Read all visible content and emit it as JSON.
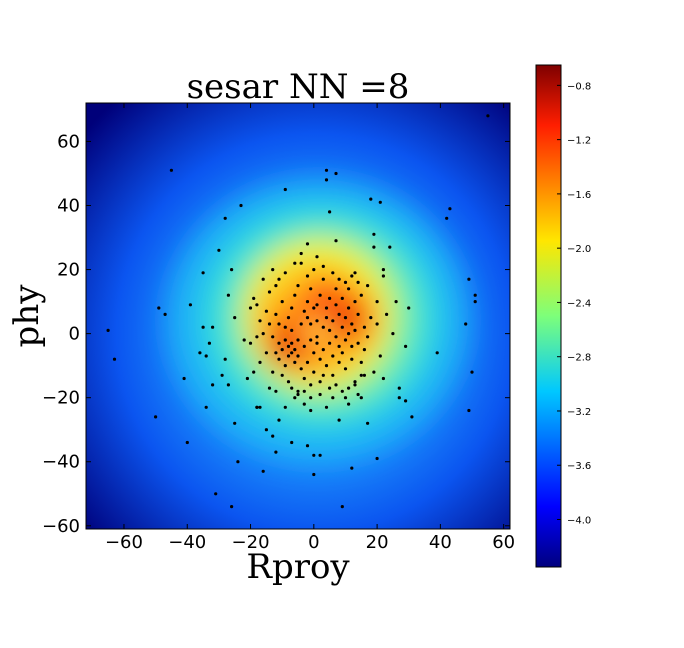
{
  "chart_data": {
    "type": "scatter",
    "title": "sesar NN =8",
    "xlabel": "Rproy",
    "ylabel": "phy",
    "xlim": [
      -72,
      62
    ],
    "ylim": [
      -61,
      72
    ],
    "xticks": [
      -60,
      -40,
      -20,
      0,
      20,
      40,
      60
    ],
    "yticks": [
      -60,
      -40,
      -20,
      0,
      20,
      40,
      60
    ],
    "grid": false,
    "background": "density heatmap (jet colormap)",
    "colorbar": {
      "colormap": "jet",
      "range": [
        -4.35,
        -0.65
      ],
      "ticks": [
        -4.0,
        -3.6,
        -3.2,
        -2.8,
        -2.4,
        -2.0,
        -1.6,
        -1.2,
        -0.8
      ],
      "tick_labels": [
        "−4.0",
        "−3.6",
        "−3.2",
        "−2.8",
        "−2.4",
        "−2.0",
        "−1.6",
        "−1.2",
        "−0.8"
      ]
    },
    "points": [
      [
        -65,
        1
      ],
      [
        -63,
        -8
      ],
      [
        -50,
        -26
      ],
      [
        -49,
        8
      ],
      [
        -47,
        6
      ],
      [
        -45,
        51
      ],
      [
        -41,
        -14
      ],
      [
        -40,
        -34
      ],
      [
        -39,
        9
      ],
      [
        -36,
        -6
      ],
      [
        -35,
        2
      ],
      [
        -35,
        19
      ],
      [
        -34,
        -23
      ],
      [
        -34,
        -7
      ],
      [
        -33,
        -3
      ],
      [
        -32,
        2
      ],
      [
        -32,
        -16
      ],
      [
        -31,
        -50
      ],
      [
        -30,
        26
      ],
      [
        -29,
        -13
      ],
      [
        -28,
        36
      ],
      [
        -28,
        -8
      ],
      [
        -27,
        12
      ],
      [
        -27,
        -16
      ],
      [
        -26,
        20
      ],
      [
        -26,
        -54
      ],
      [
        -25,
        -28
      ],
      [
        -25,
        5
      ],
      [
        -24,
        -40
      ],
      [
        -23,
        40
      ],
      [
        -22,
        -2
      ],
      [
        -21,
        -14
      ],
      [
        -20,
        8
      ],
      [
        -19,
        -12
      ],
      [
        -18,
        -23
      ],
      [
        -18,
        -23
      ],
      [
        -17,
        -23
      ],
      [
        -16,
        -43
      ],
      [
        -15,
        -30
      ],
      [
        -14,
        -17
      ],
      [
        -13,
        -32
      ],
      [
        -12,
        -18
      ],
      [
        -12,
        -37
      ],
      [
        -11,
        -27
      ],
      [
        -9,
        45
      ],
      [
        -9,
        -23
      ],
      [
        -7,
        -34
      ],
      [
        -6,
        -20
      ],
      [
        -5,
        -18
      ],
      [
        -3,
        -22
      ],
      [
        -2,
        -35
      ],
      [
        -1,
        -24
      ],
      [
        0,
        -38
      ],
      [
        0,
        -44
      ],
      [
        2,
        -38
      ],
      [
        3,
        -13
      ],
      [
        4,
        -23
      ],
      [
        4,
        51
      ],
      [
        4,
        48
      ],
      [
        5,
        38
      ],
      [
        6,
        -20
      ],
      [
        7,
        29
      ],
      [
        7,
        50
      ],
      [
        8,
        -27
      ],
      [
        9,
        -54
      ],
      [
        10,
        -20
      ],
      [
        11,
        -22
      ],
      [
        12,
        -42
      ],
      [
        13,
        -16
      ],
      [
        14,
        -19
      ],
      [
        15,
        -20
      ],
      [
        16,
        -13
      ],
      [
        17,
        -28
      ],
      [
        18,
        42
      ],
      [
        19,
        31
      ],
      [
        19,
        27
      ],
      [
        20,
        -39
      ],
      [
        21,
        41
      ],
      [
        22,
        20
      ],
      [
        22,
        18
      ],
      [
        24,
        27
      ],
      [
        26,
        10
      ],
      [
        27,
        -17
      ],
      [
        27,
        -20
      ],
      [
        29,
        -4
      ],
      [
        29,
        -21
      ],
      [
        30,
        8
      ],
      [
        31,
        -26
      ],
      [
        39,
        -6
      ],
      [
        42,
        36
      ],
      [
        43,
        39
      ],
      [
        48,
        3
      ],
      [
        49,
        -24
      ],
      [
        49,
        17
      ],
      [
        50,
        -12
      ],
      [
        51,
        12
      ],
      [
        51,
        10
      ],
      [
        55,
        68
      ],
      [
        -19,
        11
      ],
      [
        -18,
        9
      ],
      [
        -17,
        4
      ],
      [
        -16,
        17
      ],
      [
        -15,
        7
      ],
      [
        -14,
        13
      ],
      [
        -13,
        20
      ],
      [
        -13,
        -1
      ],
      [
        -12,
        6
      ],
      [
        -12,
        -6
      ],
      [
        -11,
        3
      ],
      [
        -11,
        -3
      ],
      [
        -11,
        -8
      ],
      [
        -10,
        10
      ],
      [
        -10,
        -5
      ],
      [
        -9,
        -10
      ],
      [
        -9,
        2
      ],
      [
        -9,
        -2
      ],
      [
        -8,
        -4
      ],
      [
        -8,
        -7
      ],
      [
        -8,
        5
      ],
      [
        -7,
        -6
      ],
      [
        -7,
        -3
      ],
      [
        -7,
        1
      ],
      [
        -7,
        8
      ],
      [
        -6,
        -5
      ],
      [
        -6,
        -9
      ],
      [
        -6,
        12
      ],
      [
        -5,
        -2
      ],
      [
        -5,
        -7
      ],
      [
        -5,
        15
      ],
      [
        -4,
        3
      ],
      [
        -4,
        -11
      ],
      [
        -4,
        22
      ],
      [
        -3,
        -4
      ],
      [
        -3,
        7
      ],
      [
        -3,
        -14
      ],
      [
        -2,
        18
      ],
      [
        -2,
        -9
      ],
      [
        -2,
        10
      ],
      [
        -1,
        -2
      ],
      [
        -1,
        -16
      ],
      [
        -1,
        14
      ],
      [
        0,
        20
      ],
      [
        0,
        -6
      ],
      [
        0,
        -12
      ],
      [
        1,
        9
      ],
      [
        1,
        -3
      ],
      [
        1,
        4
      ],
      [
        2,
        -8
      ],
      [
        2,
        12
      ],
      [
        2,
        -15
      ],
      [
        3,
        2
      ],
      [
        3,
        -5
      ],
      [
        3,
        17
      ],
      [
        4,
        8
      ],
      [
        4,
        -10
      ],
      [
        4,
        5
      ],
      [
        5,
        1
      ],
      [
        5,
        -3
      ],
      [
        5,
        11
      ],
      [
        6,
        -7
      ],
      [
        6,
        4
      ],
      [
        6,
        -13
      ],
      [
        7,
        9
      ],
      [
        7,
        -1
      ],
      [
        7,
        14
      ],
      [
        8,
        -4
      ],
      [
        8,
        6
      ],
      [
        8,
        -9
      ],
      [
        9,
        2
      ],
      [
        9,
        -6
      ],
      [
        9,
        11
      ],
      [
        10,
        5
      ],
      [
        10,
        -2
      ],
      [
        10,
        -11
      ],
      [
        11,
        8
      ],
      [
        11,
        0
      ],
      [
        11,
        14
      ],
      [
        12,
        -4
      ],
      [
        12,
        3
      ],
      [
        12,
        -8
      ],
      [
        13,
        10
      ],
      [
        13,
        1
      ],
      [
        13,
        19
      ],
      [
        14,
        -3
      ],
      [
        14,
        6
      ],
      [
        15,
        -9
      ],
      [
        15,
        12
      ],
      [
        16,
        2
      ],
      [
        16,
        -5
      ],
      [
        17,
        15
      ],
      [
        17,
        -1
      ],
      [
        18,
        5
      ],
      [
        19,
        -12
      ],
      [
        20,
        3
      ],
      [
        20,
        10
      ],
      [
        21,
        -7
      ],
      [
        22,
        -14
      ],
      [
        23,
        6
      ],
      [
        25,
        0
      ],
      [
        -20,
        -3
      ],
      [
        -18,
        -1
      ],
      [
        -17,
        -9
      ],
      [
        -16,
        0
      ],
      [
        -15,
        -6
      ],
      [
        -14,
        3
      ],
      [
        -13,
        -12
      ],
      [
        -12,
        15
      ],
      [
        -11,
        17
      ],
      [
        -10,
        -13
      ],
      [
        -9,
        19
      ],
      [
        -8,
        -15
      ],
      [
        -7,
        -17
      ],
      [
        -6,
        22
      ],
      [
        -5,
        -19
      ],
      [
        -4,
        25
      ],
      [
        -3,
        -18
      ],
      [
        -2,
        28
      ],
      [
        -1,
        -20
      ],
      [
        1,
        24
      ],
      [
        2,
        -19
      ],
      [
        3,
        21
      ],
      [
        5,
        -17
      ],
      [
        6,
        19
      ],
      [
        7,
        -16
      ],
      [
        8,
        17
      ],
      [
        9,
        -18
      ],
      [
        10,
        16
      ],
      [
        11,
        -17
      ],
      [
        12,
        18
      ],
      [
        13,
        -15
      ],
      [
        14,
        16
      ],
      [
        15,
        -13
      ],
      [
        -1,
        3
      ],
      [
        0,
        8
      ],
      [
        1,
        -1
      ],
      [
        -2,
        5
      ]
    ]
  }
}
